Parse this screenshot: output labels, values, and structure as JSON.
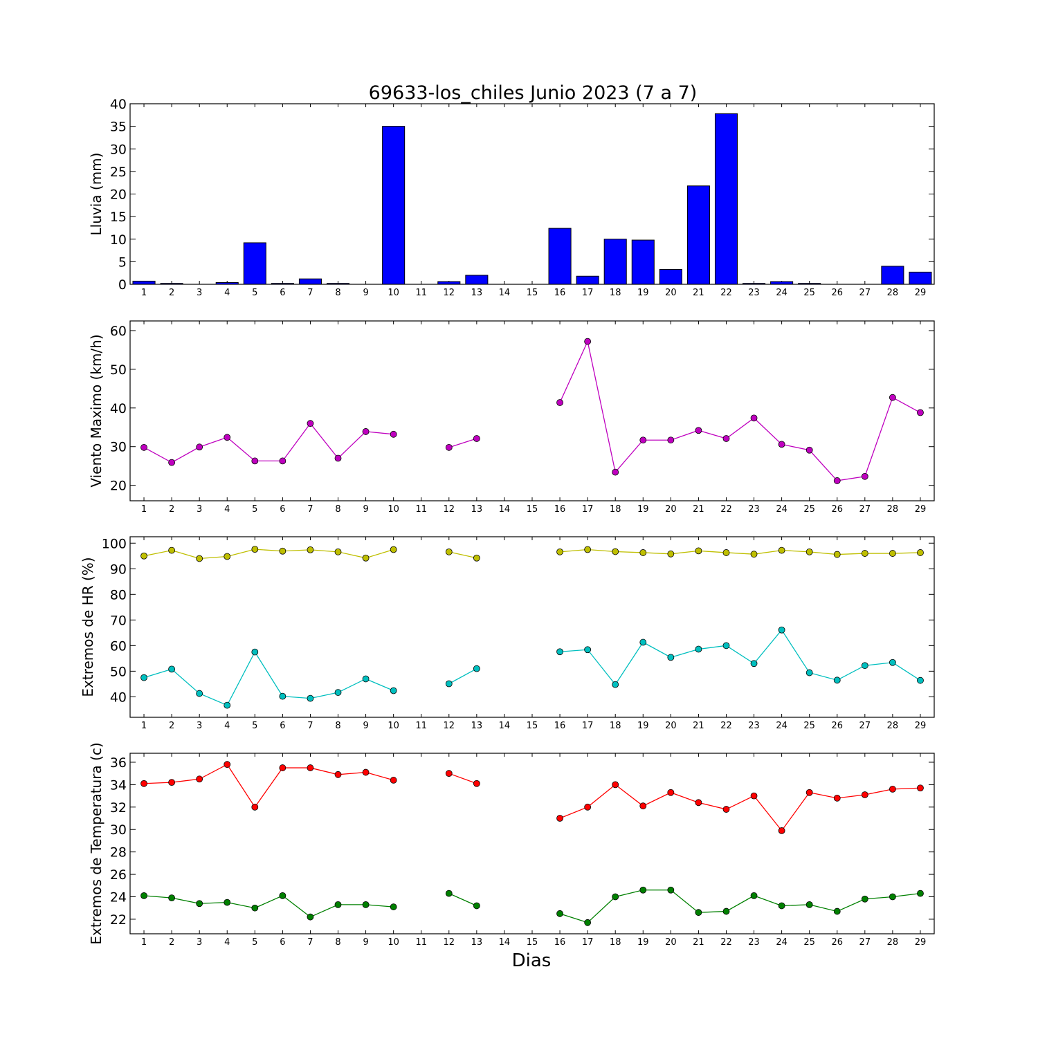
{
  "figure": {
    "title": "69633-los_chiles Junio 2023  (7 a 7)",
    "xlabel": "Dias"
  },
  "chart_data": [
    {
      "type": "bar",
      "ylabel": "Lluvia (mm)",
      "ylim": [
        0,
        40
      ],
      "yticks": [
        0,
        5,
        10,
        15,
        20,
        25,
        30,
        35,
        40
      ],
      "categories": [
        1,
        2,
        3,
        4,
        5,
        6,
        7,
        8,
        9,
        10,
        11,
        12,
        13,
        14,
        15,
        16,
        17,
        18,
        19,
        20,
        21,
        22,
        23,
        24,
        25,
        26,
        27,
        28,
        29
      ],
      "series": [
        {
          "color": "#0000ff",
          "values": [
            0.7,
            0.2,
            0,
            0.4,
            9.2,
            0.2,
            1.2,
            0.2,
            0,
            35.0,
            0,
            0.6,
            2.0,
            0,
            0,
            12.4,
            1.8,
            10.0,
            9.8,
            3.3,
            21.8,
            37.8,
            0.2,
            0.6,
            0.2,
            0,
            0,
            4.0,
            2.7
          ]
        }
      ]
    },
    {
      "type": "line",
      "ylabel": "Viento Maximo (km/h)",
      "ylim": [
        16,
        62.5
      ],
      "yticks": [
        20,
        30,
        40,
        50,
        60
      ],
      "categories": [
        1,
        2,
        3,
        4,
        5,
        6,
        7,
        8,
        9,
        10,
        11,
        12,
        13,
        14,
        15,
        16,
        17,
        18,
        19,
        20,
        21,
        22,
        23,
        24,
        25,
        26,
        27,
        28,
        29
      ],
      "series": [
        {
          "color": "#bf00bf",
          "values": [
            29.8,
            25.9,
            29.9,
            32.4,
            26.3,
            26.3,
            36.0,
            27.0,
            33.9,
            33.2,
            null,
            29.8,
            32.1,
            null,
            null,
            41.4,
            57.2,
            23.4,
            31.7,
            31.7,
            34.2,
            32.1,
            37.4,
            30.6,
            29.1,
            21.2,
            22.3,
            42.7,
            38.8
          ]
        }
      ]
    },
    {
      "type": "line",
      "ylabel": "Extremos de HR (%)",
      "ylim": [
        32,
        102.5
      ],
      "yticks": [
        40,
        50,
        60,
        70,
        80,
        90,
        100
      ],
      "categories": [
        1,
        2,
        3,
        4,
        5,
        6,
        7,
        8,
        9,
        10,
        11,
        12,
        13,
        14,
        15,
        16,
        17,
        18,
        19,
        20,
        21,
        22,
        23,
        24,
        25,
        26,
        27,
        28,
        29
      ],
      "series": [
        {
          "color": "#bfbf00",
          "values": [
            95.0,
            97.2,
            94.0,
            94.8,
            97.6,
            96.9,
            97.4,
            96.6,
            94.2,
            97.5,
            null,
            96.6,
            94.2,
            null,
            null,
            96.6,
            97.5,
            96.7,
            96.3,
            95.8,
            97.0,
            96.3,
            95.7,
            97.2,
            96.6,
            95.6,
            96.0,
            96.0,
            96.3
          ]
        },
        {
          "color": "#00bfbf",
          "values": [
            47.5,
            50.8,
            41.3,
            36.7,
            57.5,
            40.2,
            39.4,
            41.7,
            47.0,
            42.4,
            null,
            45.1,
            51.0,
            null,
            null,
            57.6,
            58.4,
            44.8,
            61.3,
            55.4,
            58.6,
            60.0,
            53.0,
            66.1,
            49.4,
            46.5,
            52.2,
            53.4,
            46.4
          ]
        }
      ]
    },
    {
      "type": "line",
      "ylabel": "Extremos de Temperatura (c)",
      "ylim": [
        20.7,
        36.8
      ],
      "yticks": [
        22,
        24,
        26,
        28,
        30,
        32,
        34,
        36
      ],
      "categories": [
        1,
        2,
        3,
        4,
        5,
        6,
        7,
        8,
        9,
        10,
        11,
        12,
        13,
        14,
        15,
        16,
        17,
        18,
        19,
        20,
        21,
        22,
        23,
        24,
        25,
        26,
        27,
        28,
        29
      ],
      "series": [
        {
          "color": "#ff0000",
          "values": [
            34.1,
            34.2,
            34.5,
            35.8,
            32.0,
            35.5,
            35.5,
            34.9,
            35.1,
            34.4,
            null,
            35.0,
            34.1,
            null,
            null,
            31.0,
            32.0,
            34.0,
            32.1,
            33.3,
            32.4,
            31.8,
            33.0,
            29.9,
            33.3,
            32.8,
            33.1,
            33.6,
            33.7
          ]
        },
        {
          "color": "#008000",
          "values": [
            24.1,
            23.9,
            23.4,
            23.5,
            23.0,
            24.1,
            22.2,
            23.3,
            23.3,
            23.1,
            null,
            24.3,
            23.2,
            null,
            null,
            22.5,
            21.7,
            24.0,
            24.6,
            24.6,
            22.6,
            22.7,
            24.1,
            23.2,
            23.3,
            22.7,
            23.8,
            24.0,
            24.3
          ]
        }
      ]
    }
  ]
}
